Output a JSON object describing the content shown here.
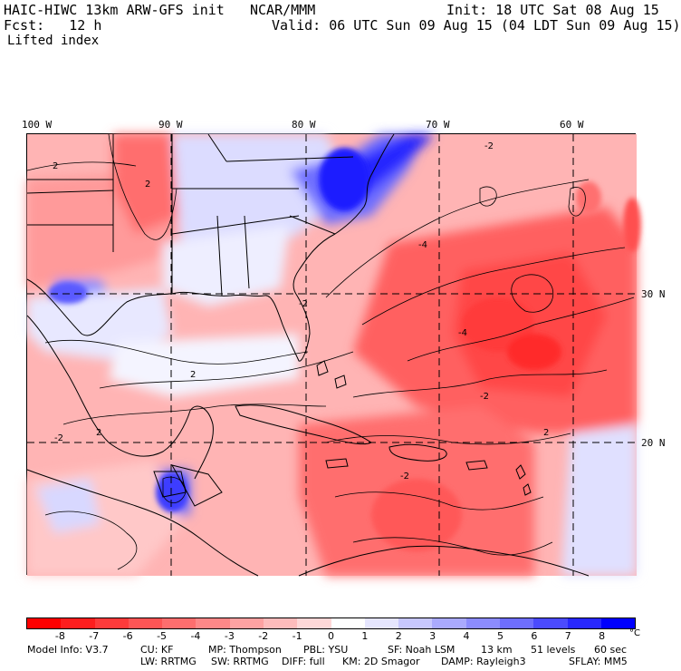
{
  "header": {
    "model": "HAIC-HIWC 13km ARW-GFS init",
    "org": "NCAR/MMM",
    "init": "Init: 18 UTC Sat 08 Aug 15",
    "fcst": "Fcst:   12 h",
    "valid": "Valid: 06 UTC Sun 09 Aug 15 (04 LDT Sun 09 Aug 15)",
    "field": "Lifted index"
  },
  "map": {
    "lon_labels": [
      "100 W",
      "90 W",
      "80 W",
      "70 W",
      "60 W"
    ],
    "lat_labels": [
      "30 N",
      "20 N"
    ],
    "contour_labels": [
      "2",
      "2",
      "2",
      "2",
      "-2",
      "-2",
      "-4",
      "-4",
      "-2",
      "2",
      "-2",
      "-2"
    ]
  },
  "colorbar": {
    "labels": [
      "-8",
      "-7",
      "-6",
      "-5",
      "-4",
      "-3",
      "-2",
      "-1",
      "0",
      "1",
      "2",
      "3",
      "4",
      "5",
      "6",
      "7",
      "8"
    ],
    "unit": "°C",
    "colors": [
      "#ff0000",
      "#ff1e1e",
      "#ff3b3b",
      "#ff5555",
      "#ff6e6e",
      "#ff8888",
      "#ffa2a2",
      "#ffbcbc",
      "#ffd8d8",
      "#ffffff",
      "#e6e6ff",
      "#c8c8ff",
      "#aaaaff",
      "#8c8cff",
      "#6e6eff",
      "#4b4bff",
      "#2828ff",
      "#0000ff"
    ]
  },
  "footer": {
    "line1": [
      "Model Info: V3.7",
      "CU: KF",
      "MP: Thompson",
      "PBL: YSU",
      "SF: Noah LSM",
      "13 km",
      "51 levels",
      "60 sec"
    ],
    "line2": [
      "LW: RRTMG",
      "SW: RRTMG",
      "DIFF: full",
      "KM: 2D Smagor",
      "DAMP: Rayleigh3",
      "SFLAY: MM5"
    ]
  }
}
